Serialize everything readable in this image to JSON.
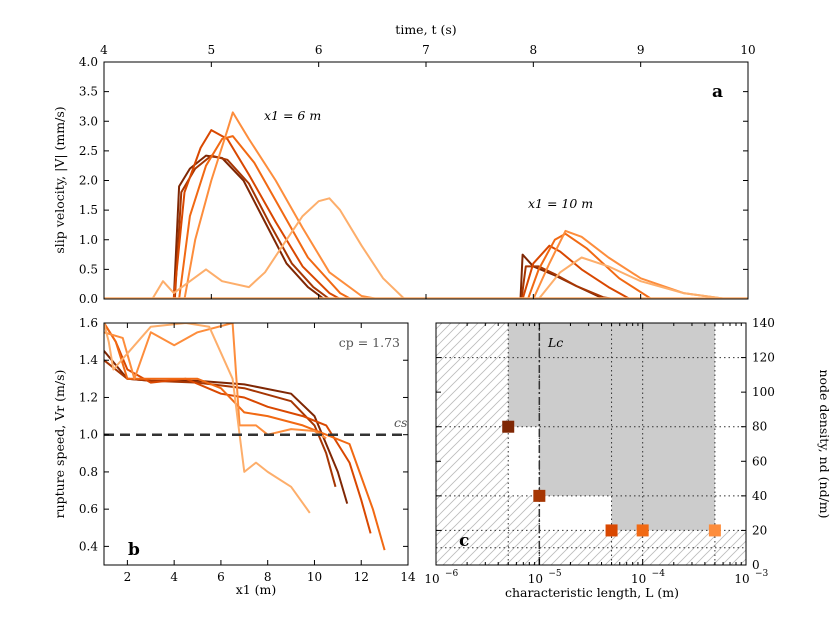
{
  "figure": {
    "panel_a": {
      "letter": "a",
      "top_axis_label": "time, t (s)",
      "top_ticks": [
        "4",
        "5",
        "6",
        "7",
        "8",
        "9",
        "10"
      ],
      "y_label": "slip velocity, |V| (mm/s)",
      "y_ticks": [
        "0.0",
        "0.5",
        "1.0",
        "1.5",
        "2.0",
        "2.5",
        "3.0",
        "3.5",
        "4.0"
      ],
      "annotation_1": "x1 = 6 m",
      "annotation_2": "x1 = 10 m"
    },
    "panel_b": {
      "letter": "b",
      "x_label": "x1 (m)",
      "x_ticks": [
        "2",
        "4",
        "6",
        "8",
        "10",
        "12",
        "14"
      ],
      "y_label": "rupture speed, Vr (m/s)",
      "y_ticks": [
        "0.4",
        "0.6",
        "0.8",
        "1.0",
        "1.2",
        "1.4",
        "1.6"
      ],
      "cp_label": "cp = 1.73",
      "cs_label": "cs"
    },
    "panel_c": {
      "letter": "c",
      "x_label": "characteristic length, L (m)",
      "x_ticks": [
        "10^-6",
        "10^-5",
        "10^-4",
        "10^-3"
      ],
      "y_label": "node density, nd (nd/m)",
      "y_ticks": [
        "0",
        "20",
        "40",
        "60",
        "80",
        "100",
        "120",
        "140"
      ],
      "lc_label": "Lc"
    }
  },
  "colors": [
    "#7f2704",
    "#a63603",
    "#d94801",
    "#f16913",
    "#fd8d3c",
    "#fdae6b"
  ],
  "chart_data": [
    {
      "type": "line",
      "panel": "a",
      "xlabel": "time, t (s)",
      "ylabel": "slip velocity, |V| (mm/s)",
      "xlim": [
        4,
        10
      ],
      "ylim": [
        0,
        4
      ],
      "series": [
        {
          "values": [
            [
              4.65,
              0
            ],
            [
              4.7,
              1.9
            ],
            [
              4.8,
              2.2
            ],
            [
              4.95,
              2.42
            ],
            [
              5.1,
              2.38
            ],
            [
              5.3,
              2.0
            ],
            [
              5.5,
              1.3
            ],
            [
              5.7,
              0.6
            ],
            [
              5.9,
              0.2
            ],
            [
              6.05,
              0
            ]
          ],
          "x1": 6
        },
        {
          "values": [
            [
              4.66,
              0
            ],
            [
              4.72,
              1.8
            ],
            [
              4.85,
              2.2
            ],
            [
              5.0,
              2.42
            ],
            [
              5.15,
              2.35
            ],
            [
              5.35,
              1.95
            ],
            [
              5.55,
              1.25
            ],
            [
              5.75,
              0.6
            ],
            [
              5.95,
              0.2
            ],
            [
              6.1,
              0
            ]
          ],
          "x1": 6
        },
        {
          "values": [
            [
              4.65,
              0
            ],
            [
              4.75,
              1.8
            ],
            [
              4.9,
              2.55
            ],
            [
              5.0,
              2.85
            ],
            [
              5.15,
              2.7
            ],
            [
              5.35,
              2.1
            ],
            [
              5.6,
              1.3
            ],
            [
              5.85,
              0.55
            ],
            [
              6.1,
              0.1
            ],
            [
              6.2,
              0
            ]
          ],
          "x1": 6
        },
        {
          "values": [
            [
              4.7,
              0
            ],
            [
              4.8,
              1.4
            ],
            [
              4.95,
              2.25
            ],
            [
              5.1,
              2.7
            ],
            [
              5.2,
              2.75
            ],
            [
              5.4,
              2.3
            ],
            [
              5.65,
              1.5
            ],
            [
              5.9,
              0.7
            ],
            [
              6.2,
              0.1
            ],
            [
              6.3,
              0
            ]
          ],
          "x1": 6
        },
        {
          "values": [
            [
              4.75,
              0
            ],
            [
              4.85,
              1.0
            ],
            [
              5.0,
              2.0
            ],
            [
              5.15,
              2.85
            ],
            [
              5.2,
              3.15
            ],
            [
              5.35,
              2.7
            ],
            [
              5.6,
              2.0
            ],
            [
              5.85,
              1.2
            ],
            [
              6.1,
              0.45
            ],
            [
              6.4,
              0.05
            ],
            [
              6.55,
              0
            ]
          ],
          "x1": 6
        },
        {
          "values": [
            [
              4.45,
              0
            ],
            [
              4.55,
              0.3
            ],
            [
              4.65,
              0.1
            ],
            [
              4.95,
              0.5
            ],
            [
              5.1,
              0.3
            ],
            [
              5.35,
              0.2
            ],
            [
              5.5,
              0.45
            ],
            [
              5.7,
              1.0
            ],
            [
              5.85,
              1.4
            ],
            [
              6.0,
              1.65
            ],
            [
              6.1,
              1.7
            ],
            [
              6.2,
              1.5
            ],
            [
              6.4,
              0.9
            ],
            [
              6.6,
              0.35
            ],
            [
              6.8,
              0
            ]
          ],
          "x1": 6
        },
        {
          "values": [
            [
              7.88,
              0
            ],
            [
              7.9,
              0.75
            ],
            [
              8.0,
              0.55
            ],
            [
              8.2,
              0.4
            ],
            [
              8.4,
              0.22
            ],
            [
              8.6,
              0.05
            ],
            [
              8.7,
              0
            ]
          ],
          "x1": 10
        },
        {
          "values": [
            [
              7.89,
              0
            ],
            [
              7.93,
              0.55
            ],
            [
              8.05,
              0.55
            ],
            [
              8.2,
              0.42
            ],
            [
              8.4,
              0.22
            ],
            [
              8.65,
              0.03
            ],
            [
              8.75,
              0
            ]
          ],
          "x1": 10
        },
        {
          "values": [
            [
              7.9,
              0
            ],
            [
              8.0,
              0.6
            ],
            [
              8.15,
              0.9
            ],
            [
              8.25,
              0.8
            ],
            [
              8.45,
              0.5
            ],
            [
              8.7,
              0.2
            ],
            [
              8.9,
              0
            ]
          ],
          "x1": 10
        },
        {
          "values": [
            [
              7.95,
              0
            ],
            [
              8.05,
              0.5
            ],
            [
              8.2,
              1.0
            ],
            [
              8.3,
              1.1
            ],
            [
              8.5,
              0.85
            ],
            [
              8.8,
              0.35
            ],
            [
              9.1,
              0
            ]
          ],
          "x1": 10
        },
        {
          "values": [
            [
              8.0,
              0
            ],
            [
              8.15,
              0.6
            ],
            [
              8.3,
              1.15
            ],
            [
              8.45,
              1.05
            ],
            [
              8.7,
              0.7
            ],
            [
              9.0,
              0.35
            ],
            [
              9.4,
              0.1
            ],
            [
              9.8,
              0
            ]
          ],
          "x1": 10
        },
        {
          "values": [
            [
              8.05,
              0
            ],
            [
              8.25,
              0.45
            ],
            [
              8.45,
              0.7
            ],
            [
              8.7,
              0.55
            ],
            [
              9.0,
              0.3
            ],
            [
              9.4,
              0.1
            ],
            [
              9.8,
              0
            ]
          ],
          "x1": 10
        }
      ]
    },
    {
      "type": "line",
      "panel": "b",
      "xlabel": "x1 (m)",
      "ylabel": "rupture speed, Vr (m/s)",
      "xlim": [
        1,
        14
      ],
      "ylim": [
        0.3,
        1.6
      ],
      "reference_lines": [
        {
          "name": "cs",
          "y": 1.0
        }
      ],
      "series": [
        {
          "values": [
            [
              1.0,
              1.45
            ],
            [
              2.0,
              1.3
            ],
            [
              3.0,
              1.29
            ],
            [
              5.0,
              1.29
            ],
            [
              7.0,
              1.27
            ],
            [
              9.0,
              1.22
            ],
            [
              10.0,
              1.1
            ],
            [
              10.5,
              0.95
            ],
            [
              11.0,
              0.8
            ],
            [
              11.4,
              0.63
            ]
          ]
        },
        {
          "values": [
            [
              1.0,
              1.4
            ],
            [
              2.0,
              1.3
            ],
            [
              3.0,
              1.29
            ],
            [
              5.0,
              1.28
            ],
            [
              7.0,
              1.25
            ],
            [
              9.0,
              1.18
            ],
            [
              10.0,
              1.05
            ],
            [
              10.5,
              0.9
            ],
            [
              10.9,
              0.72
            ]
          ]
        },
        {
          "values": [
            [
              1.0,
              1.6
            ],
            [
              1.5,
              1.5
            ],
            [
              2.0,
              1.35
            ],
            [
              3.0,
              1.28
            ],
            [
              4.5,
              1.3
            ],
            [
              6.0,
              1.22
            ],
            [
              7.0,
              1.2
            ],
            [
              8.0,
              1.15
            ],
            [
              9.5,
              1.1
            ],
            [
              10.5,
              1.05
            ],
            [
              11.5,
              0.85
            ],
            [
              12.0,
              0.65
            ],
            [
              12.4,
              0.47
            ]
          ]
        },
        {
          "values": [
            [
              1.0,
              1.6
            ],
            [
              1.5,
              1.5
            ],
            [
              2.0,
              1.3
            ],
            [
              3.0,
              1.3
            ],
            [
              5.0,
              1.3
            ],
            [
              6.0,
              1.25
            ],
            [
              7.0,
              1.12
            ],
            [
              8.0,
              1.1
            ],
            [
              9.5,
              1.05
            ],
            [
              10.5,
              1.0
            ],
            [
              11.5,
              0.95
            ],
            [
              12.5,
              0.6
            ],
            [
              13.0,
              0.38
            ]
          ]
        },
        {
          "values": [
            [
              1.0,
              1.55
            ],
            [
              1.8,
              1.52
            ],
            [
              2.3,
              1.3
            ],
            [
              3.0,
              1.55
            ],
            [
              4.0,
              1.48
            ],
            [
              5.0,
              1.55
            ],
            [
              6.5,
              1.6
            ],
            [
              6.8,
              1.05
            ],
            [
              7.5,
              1.05
            ],
            [
              8.0,
              1.0
            ],
            [
              9.0,
              1.03
            ],
            [
              10.0,
              1.02
            ],
            [
              10.5,
              0.98
            ]
          ]
        },
        {
          "values": [
            [
              1.0,
              1.6
            ],
            [
              1.2,
              1.5
            ],
            [
              1.4,
              1.35
            ],
            [
              3.0,
              1.58
            ],
            [
              4.5,
              1.6
            ],
            [
              5.5,
              1.58
            ],
            [
              6.5,
              1.3
            ],
            [
              6.8,
              1.0
            ],
            [
              7.0,
              0.8
            ],
            [
              7.5,
              0.85
            ],
            [
              8.0,
              0.8
            ],
            [
              9.0,
              0.72
            ],
            [
              9.8,
              0.58
            ]
          ]
        }
      ]
    },
    {
      "type": "scatter",
      "panel": "c",
      "xlabel": "characteristic length, L (m)",
      "ylabel": "node density, nd (nd/m)",
      "xscale": "log",
      "xlim": [
        1e-06,
        0.001
      ],
      "ylim": [
        0,
        140
      ],
      "Lc": 1e-05,
      "points": [
        {
          "L": 5e-06,
          "nd": 80
        },
        {
          "L": 1e-05,
          "nd": 40
        },
        {
          "L": 5e-05,
          "nd": 20
        },
        {
          "L": 0.0001,
          "nd": 20
        },
        {
          "L": 0.0005,
          "nd": 20
        }
      ],
      "shaded_region": [
        [
          5e-06,
          140
        ],
        [
          5e-06,
          80
        ],
        [
          1e-05,
          80
        ],
        [
          1e-05,
          40
        ],
        [
          5e-05,
          40
        ],
        [
          5e-05,
          20
        ],
        [
          0.0005,
          20
        ],
        [
          0.0005,
          140
        ]
      ],
      "hatched_region": "L < 5e-6 or nd < 20, plus nd < 40 for L < 1e-5",
      "grid": "dotted at L = 5e-6, 1e-5, 5e-5, 1e-4 and nd = 10, 20, 40, 80, 120"
    }
  ]
}
